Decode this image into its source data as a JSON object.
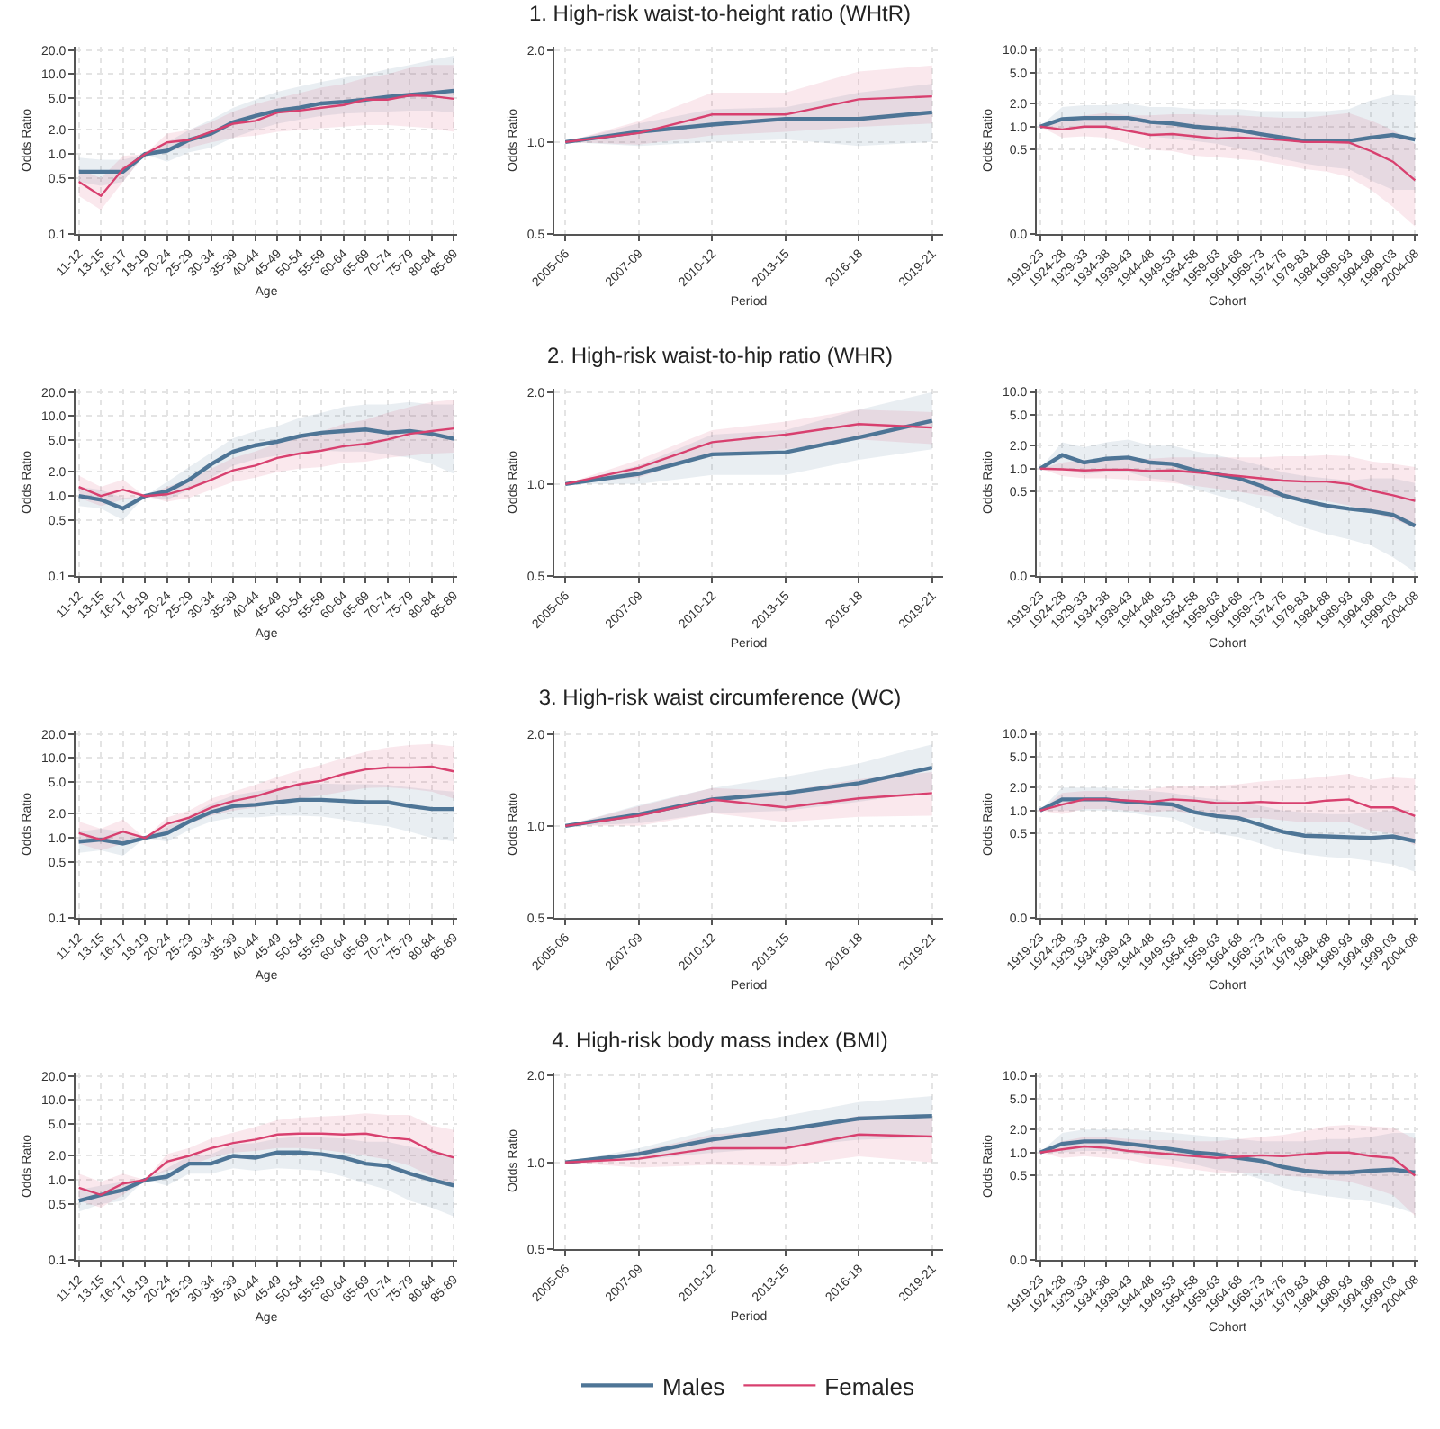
{
  "chart_data": [
    {
      "type": "line",
      "xlabel": "Age",
      "ylabel": "Odds Ratio",
      "log": true,
      "grid": true,
      "ylim": [
        0.1,
        22
      ],
      "yticks": [
        {
          "value": 0.1,
          "label": "0.1"
        },
        {
          "value": 0.5,
          "label": "0.5"
        },
        {
          "value": 1,
          "label": "1.0"
        },
        {
          "value": 2,
          "label": "2.0"
        },
        {
          "value": 5,
          "label": "5.0"
        },
        {
          "value": 10,
          "label": "10.0"
        },
        {
          "value": 20,
          "label": "20.0"
        }
      ],
      "categories": [
        "11-12",
        "13-15",
        "16-17",
        "18-19",
        "20-24",
        "25-29",
        "30-34",
        "35-39",
        "40-44",
        "45-49",
        "50-54",
        "55-59",
        "60-64",
        "65-69",
        "70-74",
        "75-79",
        "80-84",
        "85-89"
      ],
      "series": [
        {
          "color": "#4e7596",
          "values": [
            0.6,
            0.6,
            0.6,
            1.0,
            1.1,
            1.5,
            1.8,
            2.5,
            3.0,
            3.5,
            3.8,
            4.3,
            4.5,
            4.8,
            5.2,
            5.5,
            5.8,
            6.2
          ],
          "lower": [
            0.45,
            0.4,
            0.45,
            1.0,
            0.8,
            1.05,
            1.2,
            1.6,
            2.0,
            2.4,
            2.7,
            3.0,
            3.2,
            3.3,
            3.4,
            3.5,
            3.5,
            3.3
          ],
          "upper": [
            0.9,
            0.85,
            0.85,
            1.0,
            1.4,
            2.0,
            2.7,
            3.8,
            4.8,
            6.0,
            7.0,
            8.0,
            9.0,
            10.0,
            11.5,
            13,
            15,
            17
          ]
        },
        {
          "color": "#d8406f",
          "values": [
            0.45,
            0.3,
            0.65,
            1.0,
            1.4,
            1.5,
            1.9,
            2.4,
            2.6,
            3.3,
            3.5,
            3.8,
            4.1,
            4.8,
            4.8,
            5.4,
            5.3,
            4.9
          ],
          "lower": [
            0.3,
            0.2,
            0.45,
            1.0,
            1.1,
            1.2,
            1.4,
            1.6,
            1.7,
            1.9,
            2.0,
            2.1,
            2.2,
            2.3,
            2.3,
            2.2,
            2.1,
            1.9
          ],
          "upper": [
            0.65,
            0.5,
            0.95,
            1.0,
            1.8,
            2.0,
            2.5,
            3.4,
            4.2,
            5.0,
            5.8,
            6.8,
            7.5,
            9,
            10,
            12,
            13,
            13
          ]
        }
      ]
    },
    {
      "type": "line",
      "title": "1. High-risk waist-to-height ratio (WHtR)",
      "xlabel": "Period",
      "ylabel": "Odds Ratio",
      "log": true,
      "grid": true,
      "ylim": [
        0.5,
        2.05
      ],
      "yticks": [
        {
          "value": 0.5,
          "label": "0.5"
        },
        {
          "value": 1,
          "label": "1.0"
        },
        {
          "value": 2,
          "label": "2.0"
        }
      ],
      "categories": [
        "2005-06",
        "2007-09",
        "2010-12",
        "2013-15",
        "2016-18",
        "2019-21"
      ],
      "series": [
        {
          "color": "#4e7596",
          "values": [
            1.0,
            1.08,
            1.14,
            1.19,
            1.19,
            1.25
          ],
          "lower": [
            1.0,
            0.97,
            1.0,
            1.02,
            0.97,
            1.0
          ],
          "upper": [
            1.0,
            1.15,
            1.28,
            1.3,
            1.45,
            1.55
          ]
        },
        {
          "color": "#d8406f",
          "values": [
            1.0,
            1.07,
            1.23,
            1.23,
            1.38,
            1.41
          ],
          "lower": [
            1.0,
            0.98,
            1.05,
            1.08,
            1.12,
            1.15
          ],
          "upper": [
            1.0,
            1.17,
            1.45,
            1.45,
            1.7,
            1.78
          ]
        }
      ]
    },
    {
      "type": "line",
      "xlabel": "Cohort",
      "ylabel": "Odds Ratio",
      "log": true,
      "grid": true,
      "ylim": [
        0.04,
        11
      ],
      "yticks": [
        {
          "value": 0.04,
          "label": "0.0"
        },
        {
          "value": 0.5,
          "label": "0.5"
        },
        {
          "value": 1,
          "label": "1.0"
        },
        {
          "value": 2,
          "label": "2.0"
        },
        {
          "value": 5,
          "label": "5.0"
        },
        {
          "value": 10,
          "label": "10.0"
        }
      ],
      "categories": [
        "1919-23",
        "1924-28",
        "1929-33",
        "1934-38",
        "1939-43",
        "1944-48",
        "1949-53",
        "1954-58",
        "1959-63",
        "1964-68",
        "1969-73",
        "1974-78",
        "1979-83",
        "1984-88",
        "1989-93",
        "1994-98",
        "1999-03",
        "2004-08"
      ],
      "series": [
        {
          "color": "#4e7596",
          "values": [
            1.0,
            1.25,
            1.3,
            1.3,
            1.3,
            1.15,
            1.1,
            1.0,
            0.95,
            0.9,
            0.8,
            0.72,
            0.65,
            0.65,
            0.65,
            0.72,
            0.78,
            0.68
          ],
          "lower": [
            1.0,
            0.9,
            0.95,
            0.95,
            0.9,
            0.75,
            0.7,
            0.65,
            0.6,
            0.52,
            0.45,
            0.38,
            0.33,
            0.3,
            0.28,
            0.2,
            0.15,
            0.15
          ],
          "upper": [
            1.0,
            1.8,
            1.9,
            1.9,
            2.0,
            1.8,
            1.8,
            1.7,
            1.7,
            1.7,
            1.6,
            1.6,
            1.6,
            1.6,
            1.7,
            2.2,
            2.6,
            2.5
          ]
        },
        {
          "color": "#d8406f",
          "values": [
            1.0,
            0.92,
            1.0,
            1.0,
            0.88,
            0.78,
            0.8,
            0.75,
            0.7,
            0.72,
            0.7,
            0.67,
            0.63,
            0.63,
            0.62,
            0.48,
            0.35,
            0.2
          ],
          "lower": [
            1.0,
            0.72,
            0.75,
            0.72,
            0.6,
            0.5,
            0.48,
            0.42,
            0.4,
            0.38,
            0.36,
            0.32,
            0.28,
            0.26,
            0.22,
            0.15,
            0.09,
            0.05
          ],
          "upper": [
            1.0,
            1.2,
            1.4,
            1.5,
            1.4,
            1.4,
            1.45,
            1.45,
            1.4,
            1.4,
            1.35,
            1.3,
            1.3,
            1.4,
            1.5,
            1.2,
            0.9,
            0.6
          ]
        }
      ]
    },
    {
      "type": "line",
      "xlabel": "Age",
      "ylabel": "Odds Ratio",
      "log": true,
      "grid": true,
      "ylim": [
        0.1,
        22
      ],
      "yticks": [
        {
          "value": 0.1,
          "label": "0.1"
        },
        {
          "value": 0.5,
          "label": "0.5"
        },
        {
          "value": 1,
          "label": "1.0"
        },
        {
          "value": 2,
          "label": "2.0"
        },
        {
          "value": 5,
          "label": "5.0"
        },
        {
          "value": 10,
          "label": "10.0"
        },
        {
          "value": 20,
          "label": "20.0"
        }
      ],
      "categories": [
        "11-12",
        "13-15",
        "16-17",
        "18-19",
        "20-24",
        "25-29",
        "30-34",
        "35-39",
        "40-44",
        "45-49",
        "50-54",
        "55-59",
        "60-64",
        "65-69",
        "70-74",
        "75-79",
        "80-84",
        "85-89"
      ],
      "series": [
        {
          "color": "#4e7596",
          "values": [
            1.0,
            0.9,
            0.7,
            1.0,
            1.15,
            1.6,
            2.5,
            3.6,
            4.3,
            4.8,
            5.6,
            6.2,
            6.5,
            6.8,
            6.2,
            6.5,
            6.0,
            5.2
          ],
          "lower": [
            0.75,
            0.7,
            0.5,
            1.0,
            0.9,
            1.2,
            1.7,
            2.4,
            2.9,
            3.2,
            3.5,
            3.7,
            3.6,
            3.6,
            3.3,
            3.0,
            2.5,
            1.9
          ],
          "upper": [
            1.3,
            1.2,
            0.95,
            1.0,
            1.5,
            2.3,
            3.5,
            5.3,
            6.5,
            7.5,
            9.5,
            11,
            13,
            14,
            14,
            15,
            14,
            14
          ]
        },
        {
          "color": "#d8406f",
          "values": [
            1.3,
            1.0,
            1.2,
            1.0,
            1.05,
            1.25,
            1.6,
            2.1,
            2.4,
            3.0,
            3.4,
            3.7,
            4.2,
            4.5,
            5.1,
            6.0,
            6.5,
            7.0
          ],
          "lower": [
            0.95,
            0.75,
            0.9,
            1.0,
            0.85,
            0.95,
            1.2,
            1.5,
            1.7,
            2.0,
            2.2,
            2.3,
            2.6,
            2.7,
            3.0,
            3.2,
            3.4,
            3.5
          ],
          "upper": [
            1.8,
            1.3,
            1.6,
            1.0,
            1.3,
            1.6,
            2.2,
            3.0,
            3.6,
            4.6,
            5.6,
            6.4,
            8.0,
            9.0,
            11,
            13,
            15,
            16
          ]
        }
      ]
    },
    {
      "type": "line",
      "title": "2. High-risk waist-to-hip ratio (WHR)",
      "xlabel": "Period",
      "ylabel": "Odds Ratio",
      "log": true,
      "grid": true,
      "ylim": [
        0.5,
        2.05
      ],
      "yticks": [
        {
          "value": 0.5,
          "label": "0.5"
        },
        {
          "value": 1,
          "label": "1.0"
        },
        {
          "value": 2,
          "label": "2.0"
        }
      ],
      "categories": [
        "2005-06",
        "2007-09",
        "2010-12",
        "2013-15",
        "2016-18",
        "2019-21"
      ],
      "series": [
        {
          "color": "#4e7596",
          "values": [
            1.0,
            1.08,
            1.25,
            1.27,
            1.42,
            1.61
          ],
          "lower": [
            1.0,
            1.0,
            1.07,
            1.07,
            1.2,
            1.3
          ],
          "upper": [
            1.0,
            1.15,
            1.45,
            1.5,
            1.75,
            2.0
          ]
        },
        {
          "color": "#d8406f",
          "values": [
            1.0,
            1.13,
            1.37,
            1.45,
            1.57,
            1.53
          ],
          "lower": [
            1.0,
            1.05,
            1.25,
            1.3,
            1.4,
            1.35
          ],
          "upper": [
            1.0,
            1.2,
            1.5,
            1.6,
            1.75,
            1.72
          ]
        }
      ]
    },
    {
      "type": "line",
      "xlabel": "Cohort",
      "ylabel": "Odds Ratio",
      "log": true,
      "grid": true,
      "ylim": [
        0.04,
        11
      ],
      "yticks": [
        {
          "value": 0.04,
          "label": "0.0"
        },
        {
          "value": 0.5,
          "label": "0.5"
        },
        {
          "value": 1,
          "label": "1.0"
        },
        {
          "value": 2,
          "label": "2.0"
        },
        {
          "value": 5,
          "label": "5.0"
        },
        {
          "value": 10,
          "label": "10.0"
        }
      ],
      "categories": [
        "1919-23",
        "1924-28",
        "1929-33",
        "1934-38",
        "1939-43",
        "1944-48",
        "1949-53",
        "1954-58",
        "1959-63",
        "1964-68",
        "1969-73",
        "1974-78",
        "1979-83",
        "1984-88",
        "1989-93",
        "1994-98",
        "1999-03",
        "2004-08"
      ],
      "series": [
        {
          "color": "#4e7596",
          "values": [
            1.0,
            1.5,
            1.2,
            1.35,
            1.4,
            1.2,
            1.15,
            0.95,
            0.85,
            0.75,
            0.6,
            0.45,
            0.38,
            0.33,
            0.3,
            0.28,
            0.25,
            0.18
          ],
          "lower": [
            1.0,
            1.0,
            0.85,
            0.9,
            0.9,
            0.75,
            0.7,
            0.55,
            0.45,
            0.38,
            0.3,
            0.22,
            0.17,
            0.14,
            0.12,
            0.1,
            0.07,
            0.045
          ],
          "upper": [
            1.0,
            2.2,
            1.9,
            2.2,
            2.4,
            2.0,
            2.0,
            1.7,
            1.5,
            1.3,
            1.1,
            0.9,
            0.8,
            0.75,
            0.7,
            0.75,
            0.75,
            0.65
          ]
        },
        {
          "color": "#d8406f",
          "values": [
            1.0,
            0.98,
            0.95,
            0.97,
            0.97,
            0.93,
            0.95,
            0.9,
            0.85,
            0.8,
            0.75,
            0.7,
            0.68,
            0.68,
            0.63,
            0.52,
            0.45,
            0.38
          ],
          "lower": [
            1.0,
            0.8,
            0.75,
            0.75,
            0.72,
            0.68,
            0.65,
            0.6,
            0.55,
            0.5,
            0.45,
            0.42,
            0.4,
            0.38,
            0.33,
            0.27,
            0.22,
            0.17
          ],
          "upper": [
            1.0,
            1.2,
            1.3,
            1.3,
            1.35,
            1.35,
            1.4,
            1.4,
            1.4,
            1.4,
            1.4,
            1.45,
            1.45,
            1.5,
            1.45,
            1.25,
            1.15,
            1.05
          ]
        }
      ]
    },
    {
      "type": "line",
      "xlabel": "Age",
      "ylabel": "Odds Ratio",
      "log": true,
      "grid": true,
      "ylim": [
        0.1,
        22
      ],
      "yticks": [
        {
          "value": 0.1,
          "label": "0.1"
        },
        {
          "value": 0.5,
          "label": "0.5"
        },
        {
          "value": 1,
          "label": "1.0"
        },
        {
          "value": 2,
          "label": "2.0"
        },
        {
          "value": 5,
          "label": "5.0"
        },
        {
          "value": 10,
          "label": "10.0"
        },
        {
          "value": 20,
          "label": "20.0"
        }
      ],
      "categories": [
        "11-12",
        "13-15",
        "16-17",
        "18-19",
        "20-24",
        "25-29",
        "30-34",
        "35-39",
        "40-44",
        "45-49",
        "50-54",
        "55-59",
        "60-64",
        "65-69",
        "70-74",
        "75-79",
        "80-84",
        "85-89"
      ],
      "series": [
        {
          "color": "#4e7596",
          "values": [
            0.9,
            0.95,
            0.85,
            1.0,
            1.15,
            1.6,
            2.1,
            2.5,
            2.6,
            2.8,
            3.0,
            3.0,
            2.9,
            2.8,
            2.8,
            2.5,
            2.3,
            2.3
          ],
          "lower": [
            0.65,
            0.7,
            0.6,
            1.0,
            0.9,
            1.25,
            1.6,
            1.8,
            1.8,
            1.9,
            1.9,
            1.85,
            1.7,
            1.5,
            1.4,
            1.2,
            1.0,
            0.9
          ],
          "upper": [
            1.2,
            1.3,
            1.2,
            1.0,
            1.4,
            1.9,
            2.7,
            3.4,
            3.8,
            4.2,
            4.6,
            4.8,
            4.7,
            4.7,
            4.6,
            4.3,
            4.0,
            3.8
          ]
        },
        {
          "color": "#d8406f",
          "values": [
            1.15,
            0.95,
            1.2,
            1.0,
            1.5,
            1.8,
            2.4,
            2.9,
            3.3,
            4.0,
            4.7,
            5.2,
            6.3,
            7.2,
            7.6,
            7.6,
            7.8,
            6.8
          ],
          "lower": [
            0.85,
            0.7,
            0.85,
            1.0,
            1.2,
            1.5,
            1.9,
            2.2,
            2.4,
            2.8,
            3.1,
            3.4,
            3.8,
            4.2,
            4.3,
            4.1,
            3.8,
            3.1
          ],
          "upper": [
            1.6,
            1.3,
            1.7,
            1.0,
            1.8,
            2.2,
            3.1,
            3.8,
            4.6,
            5.8,
            7.0,
            8.2,
            10,
            12,
            13.5,
            14.5,
            15,
            14
          ]
        }
      ]
    },
    {
      "type": "line",
      "title": "3. High-risk waist circumference (WC)",
      "xlabel": "Period",
      "ylabel": "Odds Ratio",
      "log": true,
      "grid": true,
      "ylim": [
        0.5,
        2.05
      ],
      "yticks": [
        {
          "value": 0.5,
          "label": "0.5"
        },
        {
          "value": 1,
          "label": "1.0"
        },
        {
          "value": 2,
          "label": "2.0"
        }
      ],
      "categories": [
        "2005-06",
        "2007-09",
        "2010-12",
        "2013-15",
        "2016-18",
        "2019-21"
      ],
      "series": [
        {
          "color": "#4e7596",
          "values": [
            1.0,
            1.09,
            1.22,
            1.28,
            1.38,
            1.55
          ],
          "lower": [
            1.0,
            1.02,
            1.1,
            1.12,
            1.2,
            1.3
          ],
          "upper": [
            1.0,
            1.17,
            1.33,
            1.45,
            1.6,
            1.85
          ]
        },
        {
          "color": "#d8406f",
          "values": [
            1.0,
            1.08,
            1.22,
            1.15,
            1.23,
            1.28
          ],
          "lower": [
            1.0,
            1.0,
            1.1,
            1.03,
            1.07,
            1.08
          ],
          "upper": [
            1.0,
            1.16,
            1.33,
            1.3,
            1.42,
            1.5
          ]
        }
      ]
    },
    {
      "type": "line",
      "xlabel": "Cohort",
      "ylabel": "Odds Ratio",
      "log": true,
      "grid": true,
      "ylim": [
        0.04,
        11
      ],
      "yticks": [
        {
          "value": 0.04,
          "label": "0.0"
        },
        {
          "value": 0.5,
          "label": "0.5"
        },
        {
          "value": 1,
          "label": "1.0"
        },
        {
          "value": 2,
          "label": "2.0"
        },
        {
          "value": 5,
          "label": "5.0"
        },
        {
          "value": 10,
          "label": "10.0"
        }
      ],
      "categories": [
        "1919-23",
        "1924-28",
        "1929-33",
        "1934-38",
        "1939-43",
        "1944-48",
        "1949-53",
        "1954-58",
        "1959-63",
        "1964-68",
        "1969-73",
        "1974-78",
        "1979-83",
        "1984-88",
        "1989-93",
        "1994-98",
        "1999-03",
        "2004-08"
      ],
      "series": [
        {
          "color": "#4e7596",
          "values": [
            1.0,
            1.4,
            1.4,
            1.4,
            1.3,
            1.25,
            1.2,
            0.95,
            0.85,
            0.8,
            0.65,
            0.53,
            0.47,
            0.46,
            0.45,
            0.44,
            0.46,
            0.4
          ],
          "lower": [
            1.0,
            1.0,
            1.0,
            1.0,
            0.95,
            0.85,
            0.8,
            0.6,
            0.5,
            0.45,
            0.37,
            0.3,
            0.27,
            0.25,
            0.24,
            0.22,
            0.2,
            0.16
          ],
          "upper": [
            1.0,
            2.0,
            2.0,
            2.0,
            1.9,
            1.8,
            1.7,
            1.5,
            1.4,
            1.3,
            1.15,
            1.0,
            0.95,
            0.9,
            0.9,
            0.95,
            1.0,
            0.9
          ]
        },
        {
          "color": "#d8406f",
          "values": [
            1.0,
            1.2,
            1.4,
            1.4,
            1.35,
            1.3,
            1.4,
            1.35,
            1.25,
            1.25,
            1.3,
            1.25,
            1.25,
            1.35,
            1.4,
            1.1,
            1.1,
            0.85
          ],
          "lower": [
            1.0,
            0.9,
            1.05,
            1.05,
            1.0,
            0.95,
            1.0,
            0.9,
            0.85,
            0.8,
            0.8,
            0.75,
            0.7,
            0.7,
            0.7,
            0.55,
            0.5,
            0.35
          ],
          "upper": [
            1.0,
            1.7,
            1.8,
            1.8,
            1.8,
            1.9,
            2.1,
            2.1,
            2.1,
            2.2,
            2.4,
            2.5,
            2.6,
            2.8,
            3.0,
            2.5,
            2.7,
            2.6
          ]
        }
      ]
    },
    {
      "type": "line",
      "xlabel": "Age",
      "ylabel": "Odds Ratio",
      "log": true,
      "grid": true,
      "ylim": [
        0.1,
        22
      ],
      "yticks": [
        {
          "value": 0.1,
          "label": "0.1"
        },
        {
          "value": 0.5,
          "label": "0.5"
        },
        {
          "value": 1,
          "label": "1.0"
        },
        {
          "value": 2,
          "label": "2.0"
        },
        {
          "value": 5,
          "label": "5.0"
        },
        {
          "value": 10,
          "label": "10.0"
        },
        {
          "value": 20,
          "label": "20.0"
        }
      ],
      "categories": [
        "11-12",
        "13-15",
        "16-17",
        "18-19",
        "20-24",
        "25-29",
        "30-34",
        "35-39",
        "40-44",
        "45-49",
        "50-54",
        "55-59",
        "60-64",
        "65-69",
        "70-74",
        "75-79",
        "80-84",
        "85-89"
      ],
      "series": [
        {
          "color": "#4e7596",
          "values": [
            0.55,
            0.65,
            0.75,
            1.0,
            1.1,
            1.6,
            1.6,
            2.0,
            1.9,
            2.2,
            2.2,
            2.1,
            1.9,
            1.6,
            1.5,
            1.2,
            1.0,
            0.85
          ],
          "lower": [
            0.4,
            0.5,
            0.55,
            1.0,
            0.85,
            1.2,
            1.2,
            1.4,
            1.3,
            1.4,
            1.35,
            1.3,
            1.1,
            0.9,
            0.75,
            0.55,
            0.45,
            0.35
          ],
          "upper": [
            0.75,
            0.85,
            0.95,
            1.0,
            1.4,
            2.0,
            2.1,
            2.8,
            2.9,
            3.3,
            3.5,
            3.4,
            3.3,
            3.0,
            3.0,
            2.6,
            2.3,
            2.0
          ]
        },
        {
          "color": "#d8406f",
          "values": [
            0.8,
            0.65,
            0.9,
            1.0,
            1.7,
            2.0,
            2.5,
            2.9,
            3.2,
            3.7,
            3.8,
            3.8,
            3.7,
            3.8,
            3.4,
            3.2,
            2.3,
            1.9
          ],
          "lower": [
            0.55,
            0.45,
            0.65,
            1.0,
            1.3,
            1.5,
            1.9,
            2.2,
            2.3,
            2.5,
            2.5,
            2.4,
            2.2,
            2.0,
            1.8,
            1.5,
            1.1,
            0.85
          ],
          "upper": [
            1.2,
            0.95,
            1.2,
            1.0,
            2.1,
            2.5,
            3.3,
            3.9,
            4.6,
            5.6,
            6.0,
            6.2,
            6.4,
            6.8,
            6.5,
            6.5,
            4.8,
            4.2
          ]
        }
      ]
    },
    {
      "type": "line",
      "title": "4. High-risk body mass index (BMI)",
      "xlabel": "Period",
      "ylabel": "Odds Ratio",
      "log": true,
      "grid": true,
      "legend": "bottom",
      "ylim": [
        0.5,
        2.05
      ],
      "yticks": [
        {
          "value": 0.5,
          "label": "0.5"
        },
        {
          "value": 1,
          "label": "1.0"
        },
        {
          "value": 2,
          "label": "2.0"
        }
      ],
      "categories": [
        "2005-06",
        "2007-09",
        "2010-12",
        "2013-15",
        "2016-18",
        "2019-21"
      ],
      "series": [
        {
          "name": "Males",
          "color": "#4e7596",
          "values": [
            1.0,
            1.07,
            1.2,
            1.3,
            1.42,
            1.45
          ],
          "lower": [
            1.0,
            1.02,
            1.08,
            1.13,
            1.2,
            1.22
          ],
          "upper": [
            1.0,
            1.12,
            1.3,
            1.45,
            1.62,
            1.7
          ]
        },
        {
          "name": "Females",
          "color": "#d8406f",
          "values": [
            1.0,
            1.03,
            1.12,
            1.12,
            1.25,
            1.23
          ],
          "lower": [
            1.0,
            0.96,
            0.98,
            0.97,
            1.05,
            1.0
          ],
          "upper": [
            1.0,
            1.09,
            1.25,
            1.3,
            1.45,
            1.45
          ]
        }
      ]
    },
    {
      "type": "line",
      "xlabel": "Cohort",
      "ylabel": "Odds Ratio",
      "log": true,
      "grid": true,
      "ylim": [
        0.04,
        11
      ],
      "yticks": [
        {
          "value": 0.04,
          "label": "0.0"
        },
        {
          "value": 0.5,
          "label": "0.5"
        },
        {
          "value": 1,
          "label": "1.0"
        },
        {
          "value": 2,
          "label": "2.0"
        },
        {
          "value": 5,
          "label": "5.0"
        },
        {
          "value": 10,
          "label": "10.0"
        }
      ],
      "categories": [
        "1919-23",
        "1924-28",
        "1929-33",
        "1934-38",
        "1939-43",
        "1944-48",
        "1949-53",
        "1954-58",
        "1959-63",
        "1964-68",
        "1969-73",
        "1974-78",
        "1979-83",
        "1984-88",
        "1989-93",
        "1994-98",
        "1999-03",
        "2004-08"
      ],
      "series": [
        {
          "color": "#4e7596",
          "values": [
            1.0,
            1.3,
            1.4,
            1.4,
            1.3,
            1.2,
            1.1,
            1.0,
            0.95,
            0.85,
            0.78,
            0.65,
            0.58,
            0.55,
            0.55,
            0.58,
            0.6,
            0.55
          ],
          "lower": [
            1.0,
            1.0,
            1.05,
            1.05,
            1.0,
            0.85,
            0.8,
            0.7,
            0.6,
            0.55,
            0.45,
            0.35,
            0.3,
            0.27,
            0.25,
            0.23,
            0.2,
            0.16
          ],
          "upper": [
            1.0,
            1.8,
            2.0,
            2.0,
            2.0,
            1.9,
            1.8,
            1.7,
            1.6,
            1.5,
            1.4,
            1.4,
            1.4,
            1.5,
            1.5,
            1.6,
            1.8,
            1.8
          ]
        },
        {
          "color": "#d8406f",
          "values": [
            1.0,
            1.1,
            1.2,
            1.15,
            1.05,
            1.0,
            0.95,
            0.9,
            0.85,
            0.88,
            0.92,
            0.9,
            0.95,
            1.0,
            1.0,
            0.9,
            0.85,
            0.5
          ],
          "lower": [
            1.0,
            0.85,
            0.9,
            0.85,
            0.8,
            0.7,
            0.65,
            0.6,
            0.55,
            0.55,
            0.55,
            0.5,
            0.48,
            0.45,
            0.42,
            0.35,
            0.28,
            0.15
          ],
          "upper": [
            1.0,
            1.4,
            1.6,
            1.6,
            1.5,
            1.45,
            1.45,
            1.4,
            1.4,
            1.5,
            1.6,
            1.7,
            1.9,
            2.2,
            2.3,
            2.2,
            2.1,
            1.5
          ]
        }
      ]
    }
  ]
}
